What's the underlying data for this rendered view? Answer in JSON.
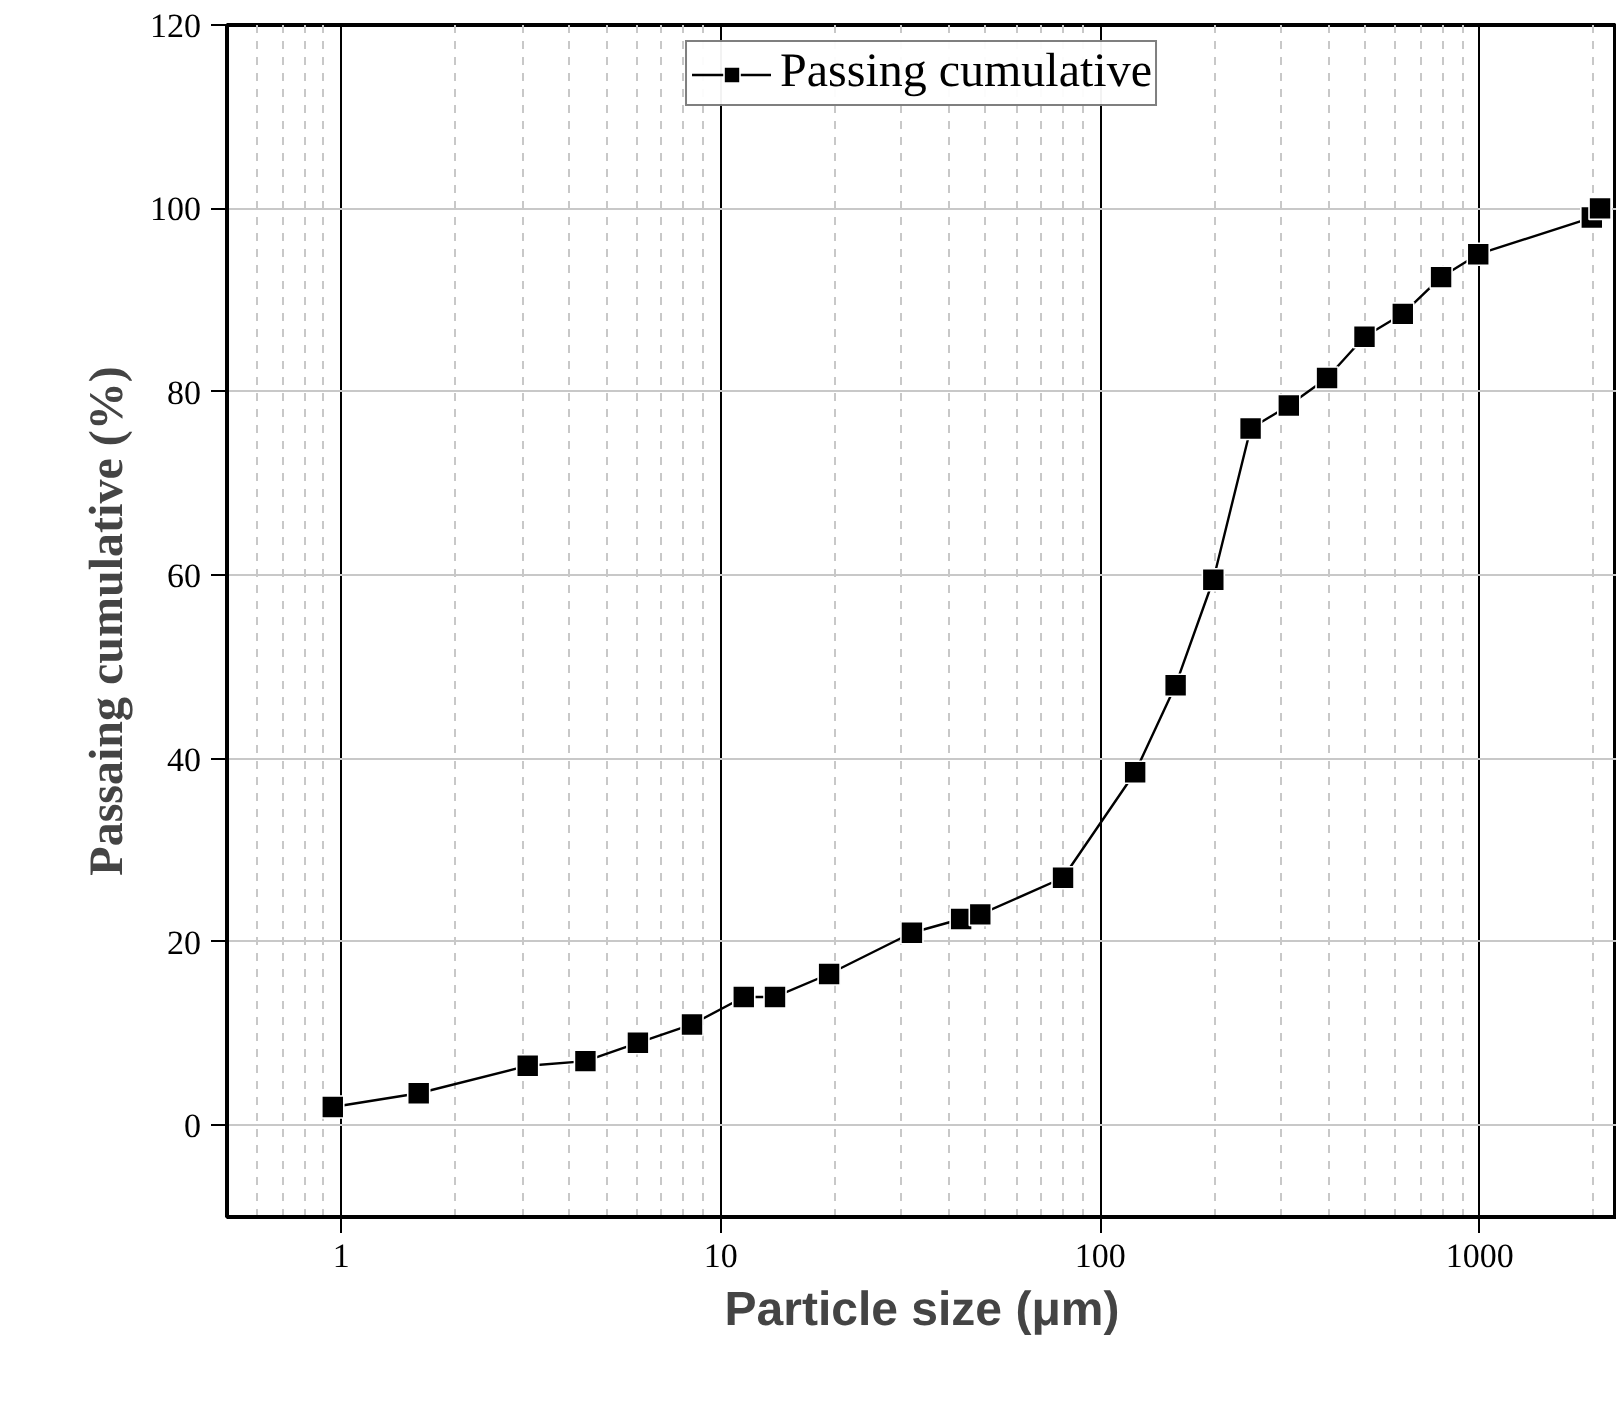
{
  "chart_data": {
    "type": "line",
    "xlabel": "Particle size (μm)",
    "ylabel": "Passaing cumulative (%)",
    "x": [
      0.95,
      1.6,
      3.1,
      4.4,
      6.05,
      8.4,
      11.5,
      13.9,
      19.3,
      31.9,
      43,
      48.3,
      79.8,
      123.6,
      158,
      198.6,
      249,
      314,
      396,
      497,
      627,
      791,
      991,
      1974,
      2075
    ],
    "series": [
      {
        "name": "Passing cumulative",
        "color": "#000000",
        "values": [
          2,
          3.5,
          6.5,
          7,
          9,
          11,
          14,
          14,
          16.5,
          21,
          22.5,
          23,
          27,
          38.5,
          48,
          59.5,
          76,
          78.5,
          81.5,
          86,
          88.5,
          92.5,
          95,
          99,
          100
        ]
      }
    ],
    "log": "x",
    "xlim": [
      0.5,
      2300
    ],
    "xticks": [
      1,
      10,
      100,
      1000
    ],
    "ylim": [
      -10,
      120
    ],
    "yticks": [
      0,
      20,
      40,
      60,
      80,
      100,
      120
    ],
    "grid": true,
    "legend": "top",
    "marker": "square",
    "line_style": "solid"
  }
}
